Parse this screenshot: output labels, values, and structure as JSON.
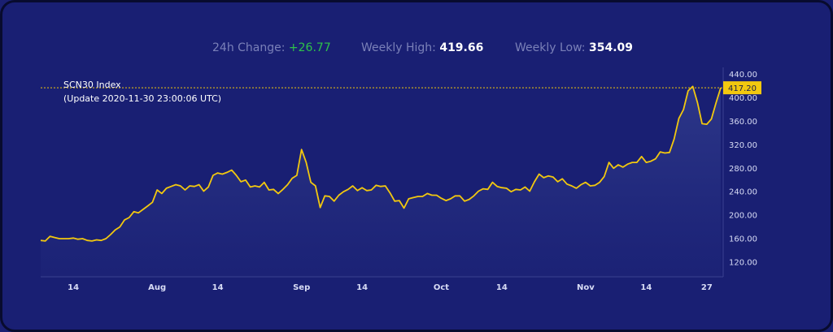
{
  "stats": {
    "change_label": "24h Change:",
    "change_value": "+26.77",
    "high_label": "Weekly High:",
    "high_value": "419.66",
    "low_label": "Weekly Low:",
    "low_value": "354.09"
  },
  "index": {
    "name": "SCN30 Index",
    "update": "(Update 2020-11-30 23:00:06 UTC)"
  },
  "colors": {
    "background": "#191f73",
    "line": "#f2c80f",
    "current_badge": "#f2c80f",
    "positive": "#2ec24a"
  },
  "chart_data": {
    "type": "area",
    "x_start": "2020-07-07",
    "x_end": "2020-11-30",
    "ylim": [
      95,
      452
    ],
    "yticks": [
      "120.00",
      "160.00",
      "200.00",
      "240.00",
      "280.00",
      "320.00",
      "360.00",
      "400.00",
      "440.00"
    ],
    "xticks": [
      {
        "label": "14",
        "date": "2020-07-14"
      },
      {
        "label": "Aug",
        "date": "2020-08-01"
      },
      {
        "label": "14",
        "date": "2020-08-14"
      },
      {
        "label": "Sep",
        "date": "2020-09-01"
      },
      {
        "label": "14",
        "date": "2020-09-14"
      },
      {
        "label": "Oct",
        "date": "2020-10-01"
      },
      {
        "label": "14",
        "date": "2020-10-14"
      },
      {
        "label": "Nov",
        "date": "2020-11-01"
      },
      {
        "label": "14",
        "date": "2020-11-14"
      },
      {
        "label": "27",
        "date": "2020-11-27"
      }
    ],
    "current_value": "417.20",
    "grid": false,
    "series": [
      {
        "values": [
          [
            0,
            157
          ],
          [
            1,
            156
          ],
          [
            2,
            164
          ],
          [
            3,
            162
          ],
          [
            4,
            160
          ],
          [
            5,
            160
          ],
          [
            6,
            160
          ],
          [
            7,
            161
          ],
          [
            8,
            159
          ],
          [
            9,
            160
          ],
          [
            10,
            157
          ],
          [
            11,
            156
          ],
          [
            12,
            158
          ],
          [
            13,
            157
          ],
          [
            14,
            160
          ],
          [
            15,
            167
          ],
          [
            16,
            175
          ],
          [
            17,
            180
          ],
          [
            18,
            192
          ],
          [
            19,
            196
          ],
          [
            20,
            206
          ],
          [
            21,
            204
          ],
          [
            22,
            210
          ],
          [
            23,
            216
          ],
          [
            24,
            222
          ],
          [
            25,
            243
          ],
          [
            26,
            237
          ],
          [
            27,
            246
          ],
          [
            28,
            249
          ],
          [
            29,
            252
          ],
          [
            30,
            250
          ],
          [
            31,
            243
          ],
          [
            32,
            250
          ],
          [
            33,
            249
          ],
          [
            34,
            252
          ],
          [
            35,
            241
          ],
          [
            36,
            248
          ],
          [
            37,
            268
          ],
          [
            38,
            272
          ],
          [
            39,
            270
          ],
          [
            40,
            273
          ],
          [
            41,
            277
          ],
          [
            42,
            268
          ],
          [
            43,
            257
          ],
          [
            44,
            260
          ],
          [
            45,
            248
          ],
          [
            46,
            250
          ],
          [
            47,
            248
          ],
          [
            48,
            256
          ],
          [
            49,
            243
          ],
          [
            50,
            244
          ],
          [
            51,
            237
          ],
          [
            52,
            244
          ],
          [
            53,
            252
          ],
          [
            54,
            263
          ],
          [
            55,
            268
          ],
          [
            56,
            312
          ],
          [
            57,
            290
          ],
          [
            58,
            256
          ],
          [
            59,
            250
          ],
          [
            60,
            213
          ],
          [
            61,
            233
          ],
          [
            62,
            232
          ],
          [
            63,
            224
          ],
          [
            64,
            234
          ],
          [
            65,
            240
          ],
          [
            66,
            244
          ],
          [
            67,
            250
          ],
          [
            68,
            242
          ],
          [
            69,
            247
          ],
          [
            70,
            242
          ],
          [
            71,
            243
          ],
          [
            72,
            251
          ],
          [
            73,
            249
          ],
          [
            74,
            250
          ],
          [
            75,
            238
          ],
          [
            76,
            224
          ],
          [
            77,
            225
          ],
          [
            78,
            212
          ],
          [
            79,
            228
          ],
          [
            80,
            230
          ],
          [
            81,
            232
          ],
          [
            82,
            232
          ],
          [
            83,
            237
          ],
          [
            84,
            234
          ],
          [
            85,
            234
          ],
          [
            86,
            229
          ],
          [
            87,
            225
          ],
          [
            88,
            228
          ],
          [
            89,
            233
          ],
          [
            90,
            233
          ],
          [
            91,
            224
          ],
          [
            92,
            227
          ],
          [
            93,
            233
          ],
          [
            94,
            241
          ],
          [
            95,
            245
          ],
          [
            96,
            244
          ],
          [
            97,
            256
          ],
          [
            98,
            249
          ],
          [
            99,
            247
          ],
          [
            100,
            246
          ],
          [
            101,
            240
          ],
          [
            102,
            244
          ],
          [
            103,
            243
          ],
          [
            104,
            248
          ],
          [
            105,
            241
          ],
          [
            106,
            257
          ],
          [
            107,
            270
          ],
          [
            108,
            264
          ],
          [
            109,
            267
          ],
          [
            110,
            265
          ],
          [
            111,
            257
          ],
          [
            112,
            262
          ],
          [
            113,
            253
          ],
          [
            114,
            250
          ],
          [
            115,
            246
          ],
          [
            116,
            252
          ],
          [
            117,
            256
          ],
          [
            118,
            250
          ],
          [
            119,
            251
          ],
          [
            120,
            256
          ],
          [
            121,
            266
          ],
          [
            122,
            290
          ],
          [
            123,
            280
          ],
          [
            124,
            286
          ],
          [
            125,
            282
          ],
          [
            126,
            287
          ],
          [
            127,
            290
          ],
          [
            128,
            290
          ],
          [
            129,
            300
          ],
          [
            130,
            290
          ],
          [
            131,
            292
          ],
          [
            132,
            296
          ],
          [
            133,
            308
          ],
          [
            134,
            306
          ],
          [
            135,
            307
          ],
          [
            136,
            330
          ],
          [
            137,
            365
          ],
          [
            138,
            380
          ],
          [
            139,
            412
          ],
          [
            140,
            419.66
          ],
          [
            141,
            392
          ],
          [
            142,
            356
          ],
          [
            143,
            355
          ],
          [
            144,
            364
          ],
          [
            145,
            392
          ],
          [
            146,
            417.2
          ]
        ]
      }
    ]
  }
}
